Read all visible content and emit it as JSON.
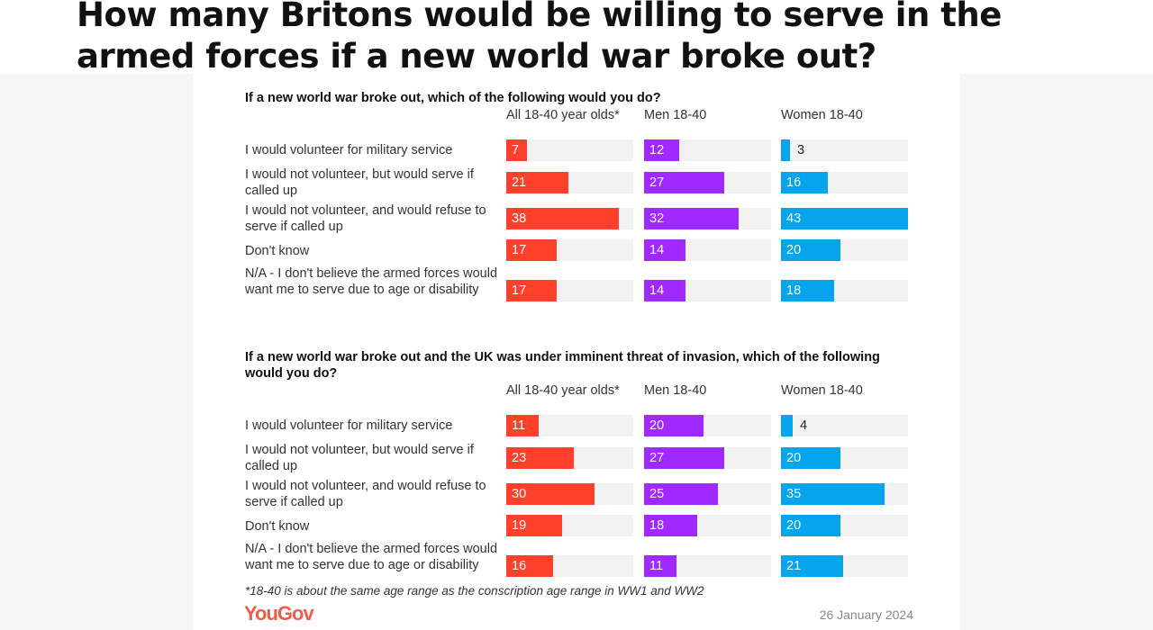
{
  "headline": "How many Britons would be willing to serve in the armed forces if a new world war broke out?",
  "chart_data": [
    {
      "type": "bar",
      "title": "If a new world war broke out, which of the following would you do?",
      "categories": [
        "I would volunteer for military service",
        "I would not volunteer, but would serve if called up",
        "I would not volunteer, and would refuse to serve if called up",
        "Don't know",
        "N/A - I don't believe the armed forces would want me to serve due to age or disability"
      ],
      "series": [
        {
          "name": "All 18-40 year olds*",
          "color": "#ff412c",
          "values": [
            7,
            21,
            38,
            17,
            17
          ]
        },
        {
          "name": "Men 18-40",
          "color": "#9f29ff",
          "values": [
            12,
            27,
            32,
            14,
            14
          ]
        },
        {
          "name": "Women 18-40",
          "color": "#04a5ec",
          "values": [
            3,
            16,
            43,
            20,
            18
          ]
        }
      ],
      "unit": "%"
    },
    {
      "type": "bar",
      "title": "If a new world war broke out and the UK was under imminent threat of invasion, which of the following would you do?",
      "categories": [
        "I would volunteer for military service",
        "I would not volunteer, but would serve if called up",
        "I would not volunteer, and would refuse to serve if called up",
        "Don't know",
        "N/A - I don't believe the armed forces would want me to serve due to age or disability"
      ],
      "series": [
        {
          "name": "All 18-40 year olds*",
          "color": "#ff412c",
          "values": [
            11,
            23,
            30,
            19,
            16
          ]
        },
        {
          "name": "Men 18-40",
          "color": "#9f29ff",
          "values": [
            20,
            27,
            25,
            18,
            11
          ]
        },
        {
          "name": "Women 18-40",
          "color": "#04a5ec",
          "values": [
            4,
            20,
            35,
            20,
            21
          ]
        }
      ],
      "unit": "%"
    }
  ],
  "footnote": "*18-40 is about the same age range as the conscription age range in WW1 and WW2",
  "logo": "YouGov",
  "date": "26 January 2024"
}
